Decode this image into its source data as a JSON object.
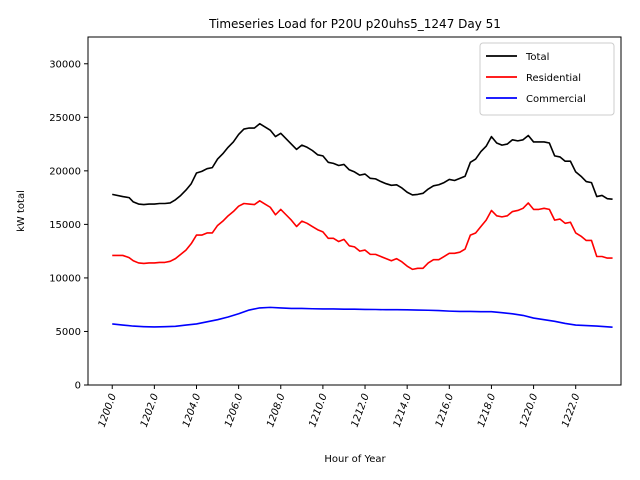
{
  "chart_data": {
    "type": "line",
    "title": "Timeseries Load for P20U p20uhs5_1247  Day 51",
    "xlabel": "Hour of Year",
    "ylabel": "kW total",
    "xlim": [
      1198.85,
      1224.15
    ],
    "ylim": [
      0,
      32500
    ],
    "xticks": [
      1200,
      1202,
      1204,
      1206,
      1208,
      1210,
      1212,
      1214,
      1216,
      1218,
      1220,
      1222
    ],
    "xtick_labels": [
      "1200.0",
      "1202.0",
      "1204.0",
      "1206.0",
      "1208.0",
      "1210.0",
      "1212.0",
      "1214.0",
      "1216.0",
      "1218.0",
      "1220.0",
      "1222.0"
    ],
    "yticks": [
      0,
      5000,
      10000,
      15000,
      20000,
      25000,
      30000
    ],
    "ytick_labels": [
      "0",
      "5000",
      "10000",
      "15000",
      "20000",
      "25000",
      "30000"
    ],
    "legend_position": "top-right",
    "series": [
      {
        "name": "Total",
        "color": "#000000",
        "x": [
          1200,
          1200.5,
          1200.8,
          1201,
          1201.25,
          1201.5,
          1201.75,
          1202,
          1202.25,
          1202.5,
          1202.75,
          1203,
          1203.25,
          1203.5,
          1203.75,
          1204,
          1204.25,
          1204.5,
          1204.75,
          1205,
          1205.25,
          1205.5,
          1205.75,
          1206,
          1206.25,
          1206.5,
          1206.75,
          1207,
          1207.25,
          1207.5,
          1207.75,
          1208,
          1208.25,
          1208.5,
          1208.75,
          1209,
          1209.25,
          1209.5,
          1209.75,
          1210,
          1210.25,
          1210.5,
          1210.75,
          1211,
          1211.25,
          1211.5,
          1211.75,
          1212,
          1212.25,
          1212.5,
          1212.75,
          1213,
          1213.25,
          1213.5,
          1213.75,
          1214,
          1214.25,
          1214.5,
          1214.75,
          1215,
          1215.25,
          1215.5,
          1215.75,
          1216,
          1216.25,
          1216.5,
          1216.75,
          1217,
          1217.25,
          1217.5,
          1217.75,
          1218,
          1218.25,
          1218.5,
          1218.75,
          1219,
          1219.25,
          1219.5,
          1219.75,
          1220,
          1220.25,
          1220.5,
          1220.75,
          1221,
          1221.25,
          1221.5,
          1221.75,
          1222,
          1222.25,
          1222.5,
          1222.75,
          1223,
          1223.25,
          1223.5,
          1223.75
        ],
        "values": [
          17800,
          17600,
          17500,
          17100,
          16900,
          16850,
          16900,
          16900,
          16950,
          16950,
          17000,
          17300,
          17700,
          18200,
          18800,
          19800,
          19950,
          20200,
          20300,
          21100,
          21600,
          22200,
          22700,
          23400,
          23900,
          24000,
          24000,
          24400,
          24100,
          23800,
          23200,
          23500,
          23000,
          22500,
          22000,
          22400,
          22200,
          21900,
          21500,
          21400,
          20800,
          20700,
          20500,
          20600,
          20100,
          19900,
          19600,
          19700,
          19300,
          19250,
          19000,
          18800,
          18650,
          18700,
          18400,
          18000,
          17750,
          17800,
          17900,
          18300,
          18600,
          18700,
          18900,
          19200,
          19100,
          19300,
          19500,
          20800,
          21100,
          21800,
          22300,
          23200,
          22600,
          22400,
          22500,
          22900,
          22800,
          22900,
          23300,
          22700,
          22700,
          22700,
          22600,
          21400,
          21300,
          20900,
          20900,
          19900,
          19500,
          19000,
          18900,
          17600,
          17700,
          17400,
          17350
        ]
      },
      {
        "name": "Residential",
        "color": "#ff0000",
        "x": [
          1200,
          1200.5,
          1200.8,
          1201,
          1201.25,
          1201.5,
          1201.75,
          1202,
          1202.25,
          1202.5,
          1202.75,
          1203,
          1203.25,
          1203.5,
          1203.75,
          1204,
          1204.25,
          1204.5,
          1204.75,
          1205,
          1205.25,
          1205.5,
          1205.75,
          1206,
          1206.25,
          1206.5,
          1206.75,
          1207,
          1207.25,
          1207.5,
          1207.75,
          1208,
          1208.25,
          1208.5,
          1208.75,
          1209,
          1209.25,
          1209.5,
          1209.75,
          1210,
          1210.25,
          1210.5,
          1210.75,
          1211,
          1211.25,
          1211.5,
          1211.75,
          1212,
          1212.25,
          1212.5,
          1212.75,
          1213,
          1213.25,
          1213.5,
          1213.75,
          1214,
          1214.25,
          1214.5,
          1214.75,
          1215,
          1215.25,
          1215.5,
          1215.75,
          1216,
          1216.25,
          1216.5,
          1216.75,
          1217,
          1217.25,
          1217.5,
          1217.75,
          1218,
          1218.25,
          1218.5,
          1218.75,
          1219,
          1219.25,
          1219.5,
          1219.75,
          1220,
          1220.25,
          1220.5,
          1220.75,
          1221,
          1221.25,
          1221.5,
          1221.75,
          1222,
          1222.25,
          1222.5,
          1222.75,
          1223,
          1223.25,
          1223.5,
          1223.75
        ],
        "values": [
          12100,
          12100,
          11900,
          11600,
          11400,
          11350,
          11400,
          11400,
          11450,
          11450,
          11550,
          11800,
          12200,
          12600,
          13200,
          14000,
          14000,
          14200,
          14200,
          14900,
          15300,
          15800,
          16200,
          16700,
          16950,
          16900,
          16850,
          17200,
          16900,
          16600,
          15900,
          16400,
          15900,
          15400,
          14800,
          15300,
          15100,
          14800,
          14500,
          14300,
          13700,
          13700,
          13400,
          13600,
          13000,
          12900,
          12500,
          12600,
          12200,
          12200,
          12000,
          11800,
          11600,
          11800,
          11500,
          11100,
          10800,
          10900,
          10900,
          11400,
          11700,
          11700,
          12000,
          12300,
          12300,
          12400,
          12700,
          14000,
          14200,
          14800,
          15400,
          16300,
          15800,
          15700,
          15800,
          16200,
          16300,
          16500,
          17000,
          16400,
          16400,
          16500,
          16400,
          15400,
          15500,
          15100,
          15200,
          14200,
          13900,
          13500,
          13500,
          12000,
          12000,
          11850,
          11850
        ]
      },
      {
        "name": "Commercial",
        "color": "#0000ff",
        "x": [
          1200,
          1200.5,
          1201,
          1201.5,
          1202,
          1202.5,
          1203,
          1203.5,
          1204,
          1204.5,
          1205,
          1205.5,
          1206,
          1206.5,
          1207,
          1207.5,
          1208,
          1208.5,
          1209,
          1209.5,
          1210,
          1210.5,
          1211,
          1211.5,
          1212,
          1212.5,
          1213,
          1213.5,
          1214,
          1214.5,
          1215,
          1215.5,
          1216,
          1216.5,
          1217,
          1217.5,
          1218,
          1218.5,
          1219,
          1219.5,
          1220,
          1220.5,
          1221,
          1221.5,
          1222,
          1222.5,
          1223,
          1223.75
        ],
        "values": [
          5700,
          5600,
          5500,
          5450,
          5420,
          5450,
          5480,
          5600,
          5700,
          5900,
          6100,
          6350,
          6650,
          7000,
          7200,
          7250,
          7200,
          7150,
          7150,
          7120,
          7100,
          7100,
          7080,
          7080,
          7060,
          7050,
          7030,
          7030,
          7020,
          7000,
          6980,
          6950,
          6900,
          6870,
          6870,
          6850,
          6850,
          6750,
          6650,
          6500,
          6250,
          6100,
          5950,
          5750,
          5600,
          5550,
          5500,
          5400
        ]
      }
    ]
  }
}
